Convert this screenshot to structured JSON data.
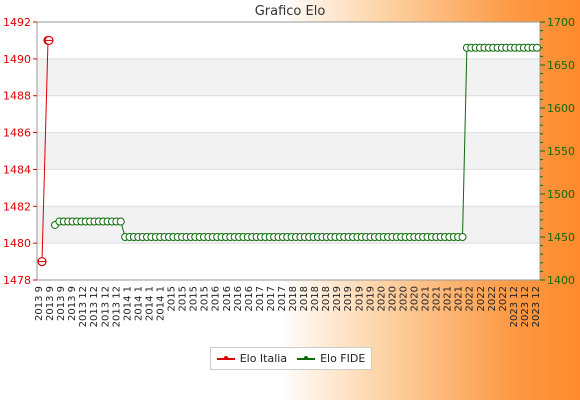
{
  "chart_data": {
    "type": "line",
    "title": "Grafico Elo",
    "left_axis": {
      "min": 1478,
      "max": 1492,
      "ticks": [
        1478,
        1480,
        1482,
        1484,
        1486,
        1488,
        1490,
        1492
      ],
      "color": "#dd0000"
    },
    "right_axis": {
      "min": 1400,
      "max": 1700,
      "ticks": [
        1400,
        1450,
        1500,
        1550,
        1600,
        1650,
        1700
      ],
      "color": "#0d6b0d"
    },
    "grid": true,
    "legend_position": "bottom",
    "x_tick_label_prefixes": [
      "2013 9",
      "2013 12",
      "2014 1",
      "2015",
      "2016",
      "2017",
      "2018",
      "2019",
      "2020",
      "2021",
      "2022",
      "2023 12"
    ],
    "series": [
      {
        "name": "Elo Italia",
        "axis": "left",
        "color": "#dd0000",
        "values": [
          1479,
          1491,
          1491
        ]
      },
      {
        "name": "Elo FIDE",
        "axis": "right",
        "color": "#0d6b0d",
        "segments": [
          {
            "value": 1464,
            "count": 1
          },
          {
            "value": 1468,
            "count": 15
          },
          {
            "value": 1450,
            "count": 78
          },
          {
            "value": 1670,
            "count": 17
          }
        ]
      }
    ]
  }
}
